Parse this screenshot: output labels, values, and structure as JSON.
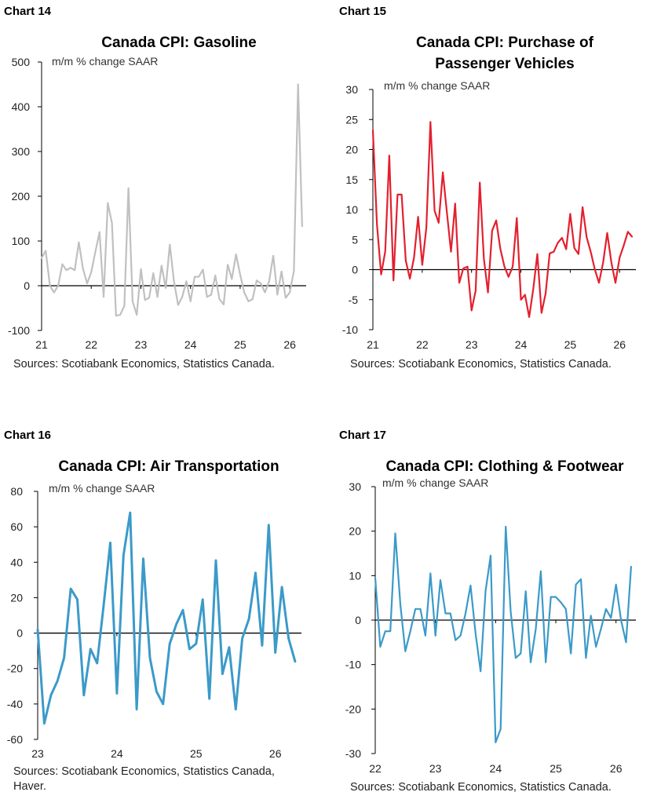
{
  "chart_data": [
    {
      "type": "line",
      "chart_number": "Chart 14",
      "title": "Canada CPI: Gasoline",
      "ylabel": "m/m % change SAAR",
      "source": "Sources: Scotiabank Economics, Statistics Canada.",
      "color": "#c0c0c0",
      "ylim": [
        -100,
        500
      ],
      "yticks": [
        -100,
        0,
        100,
        200,
        300,
        400,
        500
      ],
      "xlim": [
        2021.0,
        2026.33
      ],
      "xticks": [
        21,
        22,
        23,
        24,
        25,
        26
      ],
      "series": [
        {
          "x": [
            2021.0,
            2021.083,
            2021.167,
            2021.25,
            2021.333,
            2021.417,
            2021.5,
            2021.583,
            2021.667,
            2021.75,
            2021.833,
            2021.917,
            2022.0,
            2022.083,
            2022.167,
            2022.25,
            2022.333,
            2022.417,
            2022.5,
            2022.583,
            2022.667,
            2022.75,
            2022.833,
            2022.917,
            2023.0,
            2023.083,
            2023.167,
            2023.25,
            2023.333,
            2023.417,
            2023.5,
            2023.583,
            2023.667,
            2023.75,
            2023.833,
            2023.917,
            2024.0,
            2024.083,
            2024.167,
            2024.25,
            2024.333,
            2024.417,
            2024.5,
            2024.583,
            2024.667,
            2024.75,
            2024.833,
            2024.917,
            2025.0,
            2025.083,
            2025.167,
            2025.25,
            2025.333,
            2025.417,
            2025.5,
            2025.583,
            2025.667,
            2025.75,
            2025.833,
            2025.917,
            2026.0,
            2026.083,
            2026.167,
            2026.25
          ],
          "values": [
            62,
            78,
            0,
            -15,
            0,
            48,
            35,
            40,
            35,
            97,
            38,
            5,
            30,
            76,
            120,
            -25,
            185,
            140,
            -67,
            -65,
            -45,
            218,
            -35,
            -65,
            37,
            -32,
            -27,
            28,
            -25,
            45,
            -5,
            92,
            10,
            -43,
            -25,
            10,
            -35,
            20,
            20,
            36,
            -25,
            -20,
            23,
            -30,
            -42,
            47,
            15,
            70,
            25,
            -15,
            -35,
            -30,
            12,
            5,
            -15,
            10,
            67,
            -20,
            32,
            -27,
            -15,
            33,
            450,
            133
          ]
        }
      ]
    },
    {
      "type": "line",
      "chart_number": "Chart 15",
      "title": "Canada CPI: Purchase of Passenger Vehicles",
      "title_lines": [
        "Canada CPI: Purchase of",
        "Passenger Vehicles"
      ],
      "ylabel": "m/m % change SAAR",
      "source": "Sources: Scotiabank Economics, Statistics Canada.",
      "color": "#e3202e",
      "ylim": [
        -10,
        30
      ],
      "yticks": [
        -10,
        -5,
        0,
        5,
        10,
        15,
        20,
        25,
        30
      ],
      "xlim": [
        2021.0,
        2026.33
      ],
      "xticks": [
        21,
        22,
        23,
        24,
        25,
        26
      ],
      "series": [
        {
          "x": [
            2021.0,
            2021.083,
            2021.167,
            2021.25,
            2021.333,
            2021.417,
            2021.5,
            2021.583,
            2021.667,
            2021.75,
            2021.833,
            2021.917,
            2022.0,
            2022.083,
            2022.167,
            2022.25,
            2022.333,
            2022.417,
            2022.5,
            2022.583,
            2022.667,
            2022.75,
            2022.833,
            2022.917,
            2023.0,
            2023.083,
            2023.167,
            2023.25,
            2023.333,
            2023.417,
            2023.5,
            2023.583,
            2023.667,
            2023.75,
            2023.833,
            2023.917,
            2024.0,
            2024.083,
            2024.167,
            2024.25,
            2024.333,
            2024.417,
            2024.5,
            2024.583,
            2024.667,
            2024.75,
            2024.833,
            2024.917,
            2025.0,
            2025.083,
            2025.167,
            2025.25,
            2025.333,
            2025.417,
            2025.5,
            2025.583,
            2025.667,
            2025.75,
            2025.833,
            2025.917,
            2026.0,
            2026.083,
            2026.167,
            2026.25
          ],
          "values": [
            23.2,
            7.5,
            -0.8,
            3.0,
            19.0,
            -1.8,
            12.5,
            12.5,
            1.5,
            -1.5,
            2.0,
            8.8,
            0.8,
            7.0,
            24.6,
            9.8,
            7.8,
            16.2,
            9.5,
            3.0,
            11.0,
            -2.2,
            0.2,
            0.5,
            -6.8,
            -3.5,
            14.5,
            1.8,
            -3.8,
            6.5,
            8.2,
            3.5,
            0.5,
            -1.2,
            0.5,
            8.6,
            -5.0,
            -4.2,
            -7.9,
            -3.2,
            2.6,
            -7.2,
            -4.0,
            2.7,
            3.0,
            4.5,
            5.3,
            3.4,
            9.3,
            3.6,
            2.6,
            10.4,
            5.4,
            2.9,
            0.0,
            -2.2,
            1.2,
            6.1,
            1.2,
            -2.2,
            2.0,
            4.0,
            6.3,
            5.5
          ]
        }
      ]
    },
    {
      "type": "line",
      "chart_number": "Chart 16",
      "title": "Canada CPI: Air Transportation",
      "ylabel": "m/m % change SAAR",
      "source_lines": [
        "Sources: Scotiabank Economics, Statistics Canada,",
        "Haver."
      ],
      "color": "#3b9ac9",
      "ylim": [
        -60,
        80
      ],
      "yticks": [
        -60,
        -40,
        -20,
        0,
        20,
        40,
        60,
        80
      ],
      "xlim": [
        2023.0,
        2026.33
      ],
      "xticks": [
        23,
        24,
        25,
        26
      ],
      "series": [
        {
          "x": [
            2023.0,
            2023.083,
            2023.167,
            2023.25,
            2023.333,
            2023.417,
            2023.5,
            2023.583,
            2023.667,
            2023.75,
            2023.833,
            2023.917,
            2024.0,
            2024.083,
            2024.167,
            2024.25,
            2024.333,
            2024.417,
            2024.5,
            2024.583,
            2024.667,
            2024.75,
            2024.833,
            2024.917,
            2025.0,
            2025.083,
            2025.167,
            2025.25,
            2025.333,
            2025.417,
            2025.5,
            2025.583,
            2025.667,
            2025.75,
            2025.833,
            2025.917,
            2026.0,
            2026.083,
            2026.167,
            2026.25
          ],
          "values": [
            2,
            -51,
            -35,
            -27,
            -14,
            25,
            19,
            -35,
            -9,
            -17,
            16,
            51,
            -34,
            44,
            68,
            -43,
            42,
            -14,
            -33,
            -40,
            -6,
            5,
            13,
            -9,
            -6,
            19,
            -37,
            41,
            -23,
            -8,
            -43,
            -3,
            8,
            34,
            -7,
            61,
            -11,
            26,
            -3,
            -16
          ]
        }
      ]
    },
    {
      "type": "line",
      "chart_number": "Chart 17",
      "title": "Canada CPI: Clothing & Footwear",
      "ylabel": "m/m % change SAAR",
      "source": "Sources: Scotiabank Economics, Statistics Canada.",
      "color": "#3b9ac9",
      "ylim": [
        -30,
        30
      ],
      "yticks": [
        -30,
        -20,
        -10,
        0,
        10,
        20,
        30
      ],
      "xlim": [
        2022.0,
        2026.33
      ],
      "xticks": [
        22,
        23,
        24,
        25,
        26
      ],
      "series": [
        {
          "x": [
            2022.0,
            2022.083,
            2022.167,
            2022.25,
            2022.333,
            2022.417,
            2022.5,
            2022.583,
            2022.667,
            2022.75,
            2022.833,
            2022.917,
            2023.0,
            2023.083,
            2023.167,
            2023.25,
            2023.333,
            2023.417,
            2023.5,
            2023.583,
            2023.667,
            2023.75,
            2023.833,
            2023.917,
            2024.0,
            2024.083,
            2024.167,
            2024.25,
            2024.333,
            2024.417,
            2024.5,
            2024.583,
            2024.667,
            2024.75,
            2024.833,
            2024.917,
            2025.0,
            2025.083,
            2025.167,
            2025.25,
            2025.333,
            2025.417,
            2025.5,
            2025.583,
            2025.667,
            2025.75,
            2025.833,
            2025.917,
            2026.0,
            2026.083,
            2026.167,
            2026.25
          ],
          "values": [
            9.5,
            -6.0,
            -2.5,
            -2.5,
            19.5,
            3.5,
            -7.0,
            -2.5,
            2.5,
            2.5,
            -3.5,
            10.5,
            -3.5,
            9.0,
            1.5,
            1.5,
            -4.5,
            -3.5,
            1.5,
            7.8,
            -3.0,
            -11.5,
            6.5,
            14.5,
            -27.5,
            -24.5,
            21.0,
            2.0,
            -8.5,
            -7.5,
            6.5,
            -9.5,
            -2.0,
            11.0,
            -9.5,
            5.2,
            5.2,
            4.0,
            2.5,
            -7.5,
            8.0,
            9.2,
            -8.5,
            1.0,
            -6.0,
            -2.0,
            2.5,
            0.5,
            8.0,
            0.0,
            -5.0,
            12.0
          ]
        }
      ]
    }
  ]
}
